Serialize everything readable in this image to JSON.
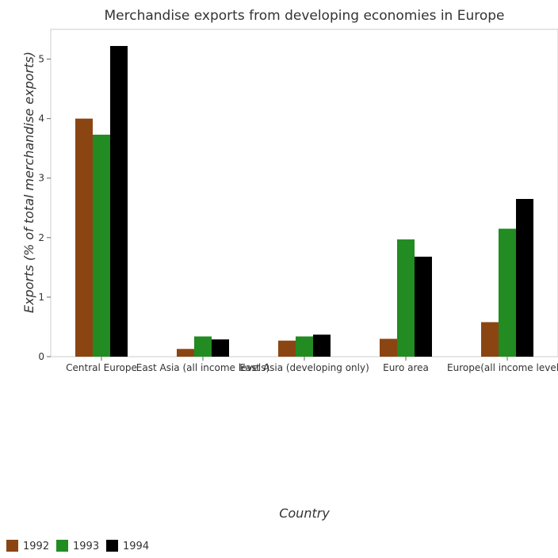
{
  "chart_data": {
    "type": "bar",
    "title": "Merchandise exports from developing economies in Europe",
    "xlabel": "Country",
    "ylabel": "Exports (% of total merchandise exports)",
    "categories": [
      "Central Europe",
      "East Asia (all income levels)",
      "East Asia (developing only)",
      "Euro area",
      "Europe(all income levels)"
    ],
    "series": [
      {
        "name": "1992",
        "color": "#8B4513",
        "values": [
          4.0,
          0.13,
          0.27,
          0.3,
          0.58
        ]
      },
      {
        "name": "1993",
        "color": "#228B22",
        "values": [
          3.73,
          0.34,
          0.34,
          1.97,
          2.15
        ]
      },
      {
        "name": "1994",
        "color": "#000000",
        "values": [
          5.22,
          0.29,
          0.37,
          1.68,
          2.65
        ]
      }
    ],
    "ylim": [
      0,
      5.5
    ],
    "yticks": [
      0,
      1,
      2,
      3,
      4,
      5
    ],
    "grid": false,
    "legend_position": "bottom-left"
  }
}
